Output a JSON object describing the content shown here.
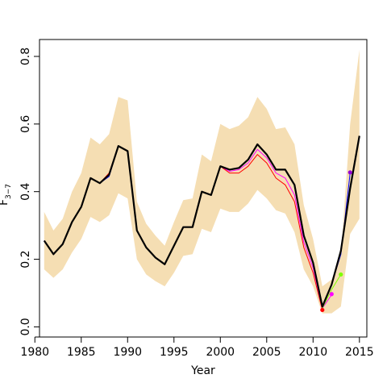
{
  "chart_data": {
    "type": "line",
    "xlabel": "Year",
    "ylabel": "F",
    "ylabel_subscript": "3−7",
    "xlim": [
      1980.5,
      2015.8
    ],
    "ylim": [
      -0.03,
      0.85
    ],
    "x_ticks": [
      1980,
      1985,
      1990,
      1995,
      2000,
      2005,
      2010,
      2015
    ],
    "x_tick_labels": [
      "1980",
      "1985",
      "1990",
      "1995",
      "2000",
      "2005",
      "2010",
      "2015"
    ],
    "y_ticks": [
      0.0,
      0.2,
      0.4,
      0.6,
      0.8
    ],
    "y_tick_labels": [
      "0.0",
      "0.2",
      "0.4",
      "0.6",
      "0.8"
    ],
    "grid": false,
    "legend": "none",
    "band": {
      "color": "#f5deb3",
      "x": [
        1981,
        1982,
        1983,
        1984,
        1985,
        1986,
        1987,
        1988,
        1989,
        1990,
        1991,
        1992,
        1993,
        1994,
        1995,
        1996,
        1997,
        1998,
        1999,
        2000,
        2001,
        2002,
        2003,
        2004,
        2005,
        2006,
        2007,
        2008,
        2009,
        2010,
        2011,
        2012,
        2013,
        2014,
        2015
      ],
      "upper": [
        0.34,
        0.285,
        0.32,
        0.4,
        0.455,
        0.56,
        0.54,
        0.57,
        0.68,
        0.67,
        0.37,
        0.305,
        0.27,
        0.24,
        0.31,
        0.375,
        0.38,
        0.51,
        0.49,
        0.6,
        0.585,
        0.595,
        0.62,
        0.68,
        0.645,
        0.585,
        0.59,
        0.54,
        0.36,
        0.26,
        0.12,
        0.14,
        0.21,
        0.6,
        0.82
      ],
      "lower": [
        0.17,
        0.145,
        0.17,
        0.22,
        0.26,
        0.325,
        0.31,
        0.33,
        0.395,
        0.38,
        0.2,
        0.155,
        0.135,
        0.12,
        0.16,
        0.21,
        0.215,
        0.29,
        0.28,
        0.35,
        0.34,
        0.34,
        0.365,
        0.405,
        0.38,
        0.345,
        0.335,
        0.28,
        0.17,
        0.12,
        0.04,
        0.04,
        0.06,
        0.275,
        0.32
      ]
    },
    "series": [
      {
        "color": "#000000",
        "width": 2.2,
        "x": [
          1981,
          1982,
          1983,
          1984,
          1985,
          1986,
          1987,
          1988,
          1989,
          1990,
          1991,
          1992,
          1993,
          1994,
          1995,
          1996,
          1997,
          1998,
          1999,
          2000,
          2001,
          2002,
          2003,
          2004,
          2005,
          2006,
          2007,
          2008,
          2009,
          2010,
          2011,
          2012,
          2013,
          2014,
          2015
        ],
        "values": [
          0.255,
          0.215,
          0.245,
          0.31,
          0.355,
          0.44,
          0.425,
          0.45,
          0.535,
          0.52,
          0.285,
          0.235,
          0.205,
          0.185,
          0.24,
          0.295,
          0.295,
          0.4,
          0.39,
          0.475,
          0.465,
          0.47,
          0.495,
          0.54,
          0.51,
          0.465,
          0.465,
          0.42,
          0.27,
          0.19,
          0.06,
          0.125,
          0.225,
          0.41,
          0.565
        ]
      },
      {
        "color": "#ff0000",
        "width": 1,
        "x": [
          1981,
          1982,
          1983,
          1984,
          1985,
          1986,
          1987,
          1988,
          1989,
          1990,
          1991,
          1992,
          1993,
          1994,
          1995,
          1996,
          1997,
          1998,
          1999,
          2000,
          2001,
          2002,
          2003,
          2004,
          2005,
          2006,
          2007,
          2008,
          2009,
          2010,
          2011
        ],
        "values": [
          0.255,
          0.215,
          0.245,
          0.31,
          0.355,
          0.44,
          0.425,
          0.455,
          0.535,
          0.52,
          0.285,
          0.235,
          0.205,
          0.185,
          0.24,
          0.295,
          0.295,
          0.4,
          0.39,
          0.475,
          0.455,
          0.455,
          0.475,
          0.51,
          0.485,
          0.44,
          0.42,
          0.37,
          0.235,
          0.16,
          0.05
        ]
      },
      {
        "color": "#ff00ff",
        "width": 1,
        "x": [
          1981,
          1982,
          1983,
          1984,
          1985,
          1986,
          1987,
          1988,
          1989,
          1990,
          1991,
          1992,
          1993,
          1994,
          1995,
          1996,
          1997,
          1998,
          1999,
          2000,
          2001,
          2002,
          2003,
          2004,
          2005,
          2006,
          2007,
          2008,
          2009,
          2010,
          2011,
          2012
        ],
        "values": [
          0.255,
          0.215,
          0.245,
          0.31,
          0.355,
          0.44,
          0.425,
          0.45,
          0.535,
          0.52,
          0.285,
          0.235,
          0.205,
          0.185,
          0.24,
          0.295,
          0.295,
          0.4,
          0.39,
          0.475,
          0.46,
          0.465,
          0.485,
          0.525,
          0.5,
          0.455,
          0.44,
          0.39,
          0.25,
          0.175,
          0.055,
          0.095
        ]
      },
      {
        "color": "#7fff00",
        "width": 1,
        "x": [
          2011,
          2012,
          2013
        ],
        "values": [
          0.055,
          0.11,
          0.155
        ]
      },
      {
        "color": "#0000ff",
        "width": 1,
        "x": [
          1981,
          1982,
          1983,
          1984,
          1985,
          1986,
          1987,
          1988,
          1989,
          1990,
          1991,
          1992,
          1993,
          1994,
          1995,
          1996,
          1997,
          1998,
          1999,
          2000,
          2001,
          2002,
          2003,
          2004,
          2005,
          2006,
          2007,
          2008,
          2009,
          2010,
          2011,
          2012,
          2013,
          2014
        ],
        "values": [
          0.255,
          0.215,
          0.245,
          0.31,
          0.355,
          0.44,
          0.425,
          0.445,
          0.535,
          0.52,
          0.285,
          0.235,
          0.205,
          0.185,
          0.24,
          0.295,
          0.295,
          0.4,
          0.39,
          0.475,
          0.465,
          0.47,
          0.495,
          0.54,
          0.51,
          0.465,
          0.465,
          0.42,
          0.27,
          0.19,
          0.06,
          0.125,
          0.215,
          0.455
        ]
      }
    ],
    "endpoints": [
      {
        "x": 2011,
        "y": 0.05,
        "color": "#ff0000"
      },
      {
        "x": 2012,
        "y": 0.097,
        "color": "#ff00ff"
      },
      {
        "x": 2013,
        "y": 0.155,
        "color": "#7fff00"
      },
      {
        "x": 2014,
        "y": 0.457,
        "color": "#9400d3"
      }
    ]
  }
}
